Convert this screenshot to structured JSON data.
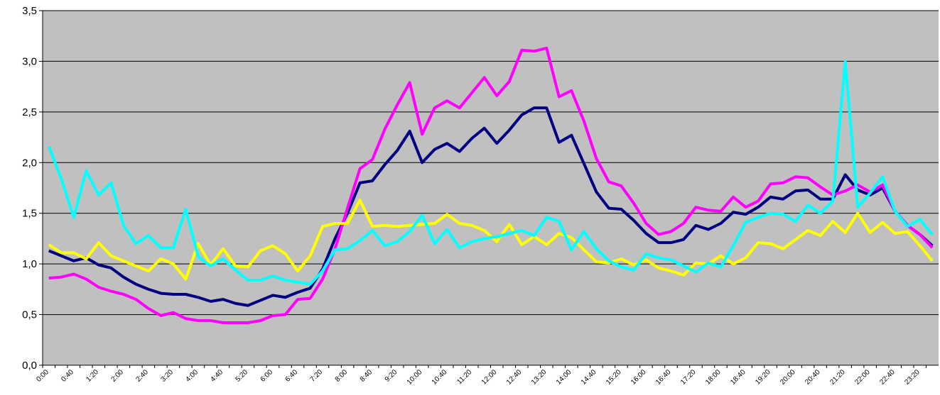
{
  "chart_data": {
    "type": "line",
    "categories": [
      "0:00",
      null,
      "0:40",
      null,
      "1:20",
      null,
      "2:00",
      null,
      "2:40",
      null,
      "3:20",
      null,
      "4:00",
      null,
      "4:40",
      null,
      "5:20",
      null,
      "6:00",
      null,
      "6:40",
      null,
      "7:20",
      null,
      "8:00",
      null,
      "8:40",
      null,
      "9:20",
      null,
      "10:00",
      null,
      "10:40",
      null,
      "11:20",
      null,
      "12:00",
      null,
      "12:40",
      null,
      "13:20",
      null,
      "14:00",
      null,
      "14:40",
      null,
      "15:20",
      null,
      "16:00",
      null,
      "16:40",
      null,
      "17:20",
      null,
      "18:00",
      null,
      "18:40",
      null,
      "19:20",
      null,
      "20:00",
      null,
      "20:40",
      null,
      "21:20",
      null,
      "22:00",
      null,
      "22:40",
      null,
      "23:20",
      null
    ],
    "series": [
      {
        "color": "#000080",
        "values": [
          1.13,
          1.08,
          1.03,
          1.06,
          0.99,
          0.96,
          0.87,
          0.8,
          0.75,
          0.71,
          0.7,
          0.7,
          0.67,
          0.63,
          0.65,
          0.61,
          0.59,
          0.64,
          0.69,
          0.67,
          0.72,
          0.76,
          0.95,
          1.25,
          1.5,
          1.8,
          1.82,
          1.98,
          2.12,
          2.31,
          2.0,
          2.13,
          2.19,
          2.11,
          2.24,
          2.34,
          2.19,
          2.32,
          2.47,
          2.54,
          2.54,
          2.2,
          2.27,
          1.99,
          1.71,
          1.55,
          1.54,
          1.43,
          1.3,
          1.21,
          1.21,
          1.24,
          1.38,
          1.34,
          1.4,
          1.51,
          1.49,
          1.56,
          1.66,
          1.64,
          1.72,
          1.73,
          1.64,
          1.64,
          1.88,
          1.73,
          1.68,
          1.75,
          1.52,
          1.38,
          1.29,
          1.18
        ]
      },
      {
        "color": "#ff00ff",
        "values": [
          0.86,
          0.87,
          0.9,
          0.85,
          0.77,
          0.73,
          0.7,
          0.65,
          0.56,
          0.49,
          0.52,
          0.46,
          0.44,
          0.44,
          0.42,
          0.42,
          0.42,
          0.44,
          0.49,
          0.5,
          0.65,
          0.66,
          0.85,
          1.15,
          1.55,
          1.94,
          2.03,
          2.33,
          2.57,
          2.79,
          2.28,
          2.54,
          2.61,
          2.54,
          2.69,
          2.84,
          2.66,
          2.8,
          3.11,
          3.1,
          3.13,
          2.65,
          2.71,
          2.41,
          2.04,
          1.81,
          1.77,
          1.6,
          1.4,
          1.29,
          1.32,
          1.4,
          1.56,
          1.53,
          1.52,
          1.66,
          1.56,
          1.62,
          1.79,
          1.8,
          1.86,
          1.85,
          1.76,
          1.68,
          1.72,
          1.78,
          1.71,
          1.78,
          1.52,
          1.38,
          1.29,
          1.16
        ]
      },
      {
        "color": "#ffff00",
        "values": [
          1.19,
          1.11,
          1.11,
          1.05,
          1.21,
          1.08,
          1.03,
          0.98,
          0.93,
          1.05,
          1.0,
          0.85,
          1.2,
          0.99,
          1.15,
          0.98,
          0.97,
          1.13,
          1.18,
          1.1,
          0.93,
          1.08,
          1.37,
          1.4,
          1.4,
          1.63,
          1.37,
          1.38,
          1.37,
          1.38,
          1.39,
          1.4,
          1.49,
          1.4,
          1.38,
          1.33,
          1.22,
          1.39,
          1.19,
          1.27,
          1.19,
          1.3,
          1.26,
          1.14,
          1.02,
          1.01,
          1.05,
          0.99,
          1.04,
          0.96,
          0.93,
          0.89,
          1.01,
          1.0,
          1.08,
          1.0,
          1.06,
          1.21,
          1.2,
          1.15,
          1.24,
          1.33,
          1.28,
          1.42,
          1.31,
          1.5,
          1.31,
          1.41,
          1.3,
          1.32,
          1.18,
          1.03
        ]
      },
      {
        "color": "#00ffff",
        "values": [
          2.16,
          1.84,
          1.46,
          1.92,
          1.68,
          1.8,
          1.38,
          1.2,
          1.28,
          1.16,
          1.16,
          1.54,
          1.07,
          0.98,
          1.05,
          0.94,
          0.84,
          0.84,
          0.88,
          0.84,
          0.82,
          0.8,
          0.93,
          1.14,
          1.15,
          1.23,
          1.33,
          1.18,
          1.22,
          1.32,
          1.48,
          1.2,
          1.34,
          1.16,
          1.22,
          1.25,
          1.27,
          1.3,
          1.33,
          1.28,
          1.46,
          1.42,
          1.14,
          1.32,
          1.15,
          1.03,
          0.97,
          0.94,
          1.1,
          1.06,
          1.04,
          0.98,
          0.92,
          1.01,
          0.97,
          1.18,
          1.41,
          1.46,
          1.5,
          1.49,
          1.42,
          1.58,
          1.5,
          1.62,
          3.0,
          1.56,
          1.7,
          1.86,
          1.52,
          1.37,
          1.44,
          1.29
        ]
      }
    ],
    "ylim": [
      0,
      3.5
    ],
    "yticks": [
      {
        "value": 0,
        "label": "0,0"
      },
      {
        "value": 0.5,
        "label": "0,5"
      },
      {
        "value": 1,
        "label": "1,0"
      },
      {
        "value": 1.5,
        "label": "1,5"
      },
      {
        "value": 2,
        "label": "2,0"
      },
      {
        "value": 2.5,
        "label": "2,5"
      },
      {
        "value": 3,
        "label": "3,0"
      },
      {
        "value": 3.5,
        "label": "3,5"
      }
    ],
    "grid": true,
    "plot_background": "#c0c0c0"
  }
}
